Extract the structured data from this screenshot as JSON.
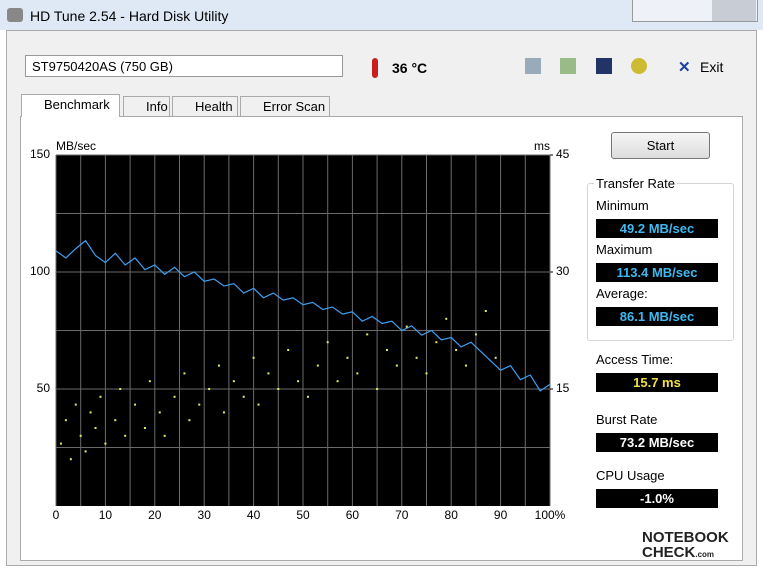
{
  "window": {
    "title": "HD Tune 2.54 - Hard Disk Utility"
  },
  "toolbar": {
    "drive": "ST9750420AS (750 GB)",
    "temperature": "36 °C",
    "exit": "Exit"
  },
  "tabs": [
    "Benchmark",
    "Info",
    "Health",
    "Error Scan"
  ],
  "panel": {
    "start": "Start",
    "transfer_rate": "Transfer Rate",
    "minimum_label": "Minimum",
    "minimum": "49.2 MB/sec",
    "maximum_label": "Maximum",
    "maximum": "113.4 MB/sec",
    "average_label": "Average:",
    "average": "86.1 MB/sec",
    "access_label": "Access Time:",
    "access": "15.7 ms",
    "burst_label": "Burst Rate",
    "burst": "73.2 MB/sec",
    "cpu_label": "CPU Usage",
    "cpu": "-1.0%"
  },
  "watermark": {
    "line1": "NOTEBOOK",
    "line2": "CHECK",
    "suffix": ".com"
  },
  "chart_data": {
    "type": "line",
    "y_label": "MB/sec",
    "y2_label": "ms",
    "x": [
      0,
      2,
      4,
      6,
      8,
      10,
      12,
      14,
      16,
      18,
      20,
      22,
      24,
      26,
      28,
      30,
      32,
      34,
      36,
      38,
      40,
      42,
      44,
      46,
      48,
      50,
      52,
      54,
      56,
      58,
      60,
      62,
      64,
      66,
      68,
      70,
      72,
      74,
      76,
      78,
      80,
      82,
      84,
      86,
      88,
      90,
      92,
      94,
      96,
      98,
      100
    ],
    "series": [
      {
        "color": "#3ea0f0",
        "values": [
          109,
          106,
          110,
          113.4,
          107,
          104,
          108,
          103,
          106,
          101,
          103,
          99,
          102,
          98,
          100,
          96,
          97,
          94,
          95,
          91,
          93,
          89,
          91,
          88,
          89,
          86,
          87,
          84,
          85,
          82,
          83,
          79,
          81,
          78,
          79,
          75,
          77,
          73,
          75,
          71,
          72,
          68,
          70,
          66,
          62,
          58,
          60,
          54,
          56,
          49.2,
          52
        ]
      },
      {
        "type": "scatter",
        "axis": "y2",
        "color": "#e8e860",
        "x": [
          1,
          2,
          3,
          4,
          5,
          6,
          7,
          8,
          9,
          10,
          12,
          13,
          14,
          16,
          18,
          19,
          21,
          22,
          24,
          26,
          27,
          29,
          31,
          33,
          34,
          36,
          38,
          40,
          41,
          43,
          45,
          47,
          49,
          51,
          53,
          55,
          57,
          59,
          61,
          63,
          65,
          67,
          69,
          71,
          73,
          75,
          77,
          79,
          81,
          83,
          85,
          87,
          89
        ],
        "values": [
          8,
          11,
          6,
          13,
          9,
          7,
          12,
          10,
          14,
          8,
          11,
          15,
          9,
          13,
          10,
          16,
          12,
          9,
          14,
          17,
          11,
          13,
          15,
          18,
          12,
          16,
          14,
          19,
          13,
          17,
          15,
          20,
          16,
          14,
          18,
          21,
          16,
          19,
          17,
          22,
          15,
          20,
          18,
          23,
          19,
          17,
          21,
          24,
          20,
          18,
          22,
          25,
          19
        ]
      }
    ],
    "xlim": [
      0,
      100
    ],
    "xticks": [
      0,
      10,
      20,
      30,
      40,
      50,
      60,
      70,
      80,
      90,
      {
        "value": 100,
        "label": "100%"
      }
    ],
    "minor_xticks": [
      5,
      15,
      25,
      35,
      45,
      55,
      65,
      75,
      85,
      95
    ],
    "ylim": [
      0,
      150
    ],
    "yticks": [
      50,
      100,
      150
    ],
    "minor_yticks": [
      25,
      75,
      125
    ],
    "y2lim": [
      0,
      45
    ],
    "y2ticks": [
      15,
      30,
      45
    ],
    "grid": true,
    "background": "#000000",
    "grid_color": "#6a6a6a"
  }
}
